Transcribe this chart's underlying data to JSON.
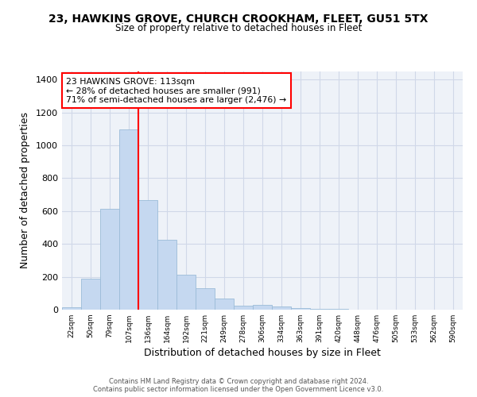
{
  "title1": "23, HAWKINS GROVE, CHURCH CROOKHAM, FLEET, GU51 5TX",
  "title2": "Size of property relative to detached houses in Fleet",
  "xlabel": "Distribution of detached houses by size in Fleet",
  "ylabel": "Number of detached properties",
  "bar_color": "#c5d8f0",
  "bar_edgecolor": "#9bbcd8",
  "grid_color": "#d0d8e8",
  "background_color": "#eef2f8",
  "categories": [
    "22sqm",
    "50sqm",
    "79sqm",
    "107sqm",
    "136sqm",
    "164sqm",
    "192sqm",
    "221sqm",
    "249sqm",
    "278sqm",
    "306sqm",
    "334sqm",
    "363sqm",
    "391sqm",
    "420sqm",
    "448sqm",
    "476sqm",
    "505sqm",
    "533sqm",
    "562sqm",
    "590sqm"
  ],
  "values": [
    15,
    190,
    615,
    1095,
    665,
    425,
    215,
    130,
    70,
    25,
    30,
    20,
    10,
    5,
    3,
    2,
    1,
    1,
    1,
    1,
    1
  ],
  "ylim": [
    0,
    1450
  ],
  "yticks": [
    0,
    200,
    400,
    600,
    800,
    1000,
    1200,
    1400
  ],
  "annotation_text": "23 HAWKINS GROVE: 113sqm\n← 28% of detached houses are smaller (991)\n71% of semi-detached houses are larger (2,476) →",
  "vline_x": 3.5,
  "footer1": "Contains HM Land Registry data © Crown copyright and database right 2024.",
  "footer2": "Contains public sector information licensed under the Open Government Licence v3.0."
}
